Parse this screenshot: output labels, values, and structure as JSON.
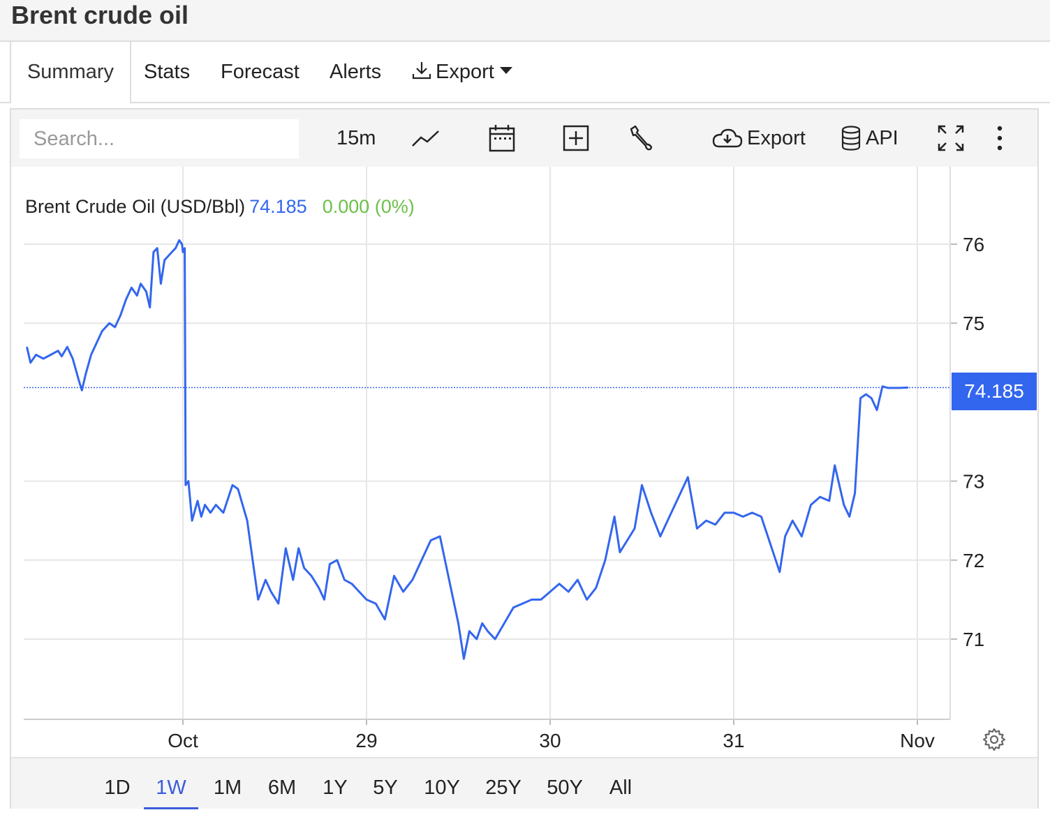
{
  "page": {
    "title": "Brent crude oil"
  },
  "tabs": [
    {
      "label": "Summary",
      "active": true
    },
    {
      "label": "Stats"
    },
    {
      "label": "Forecast"
    },
    {
      "label": "Alerts"
    },
    {
      "label": "Export"
    }
  ],
  "toolbar": {
    "search_placeholder": "Search...",
    "interval": "15m",
    "export_label": "Export",
    "api_label": "API",
    "icons": [
      "line-chart-icon",
      "calendar-icon",
      "add-indicator-icon",
      "wrench-icon",
      "cloud-download-icon",
      "database-icon",
      "fullscreen-icon",
      "more-vertical-icon"
    ]
  },
  "legend": {
    "name": "Brent Crude Oil (USD/Bbl)",
    "last": "74.185",
    "change": "0.000 (0%)"
  },
  "periods": [
    {
      "label": "1D"
    },
    {
      "label": "1W",
      "active": true
    },
    {
      "label": "1M"
    },
    {
      "label": "6M"
    },
    {
      "label": "1Y"
    },
    {
      "label": "5Y"
    },
    {
      "label": "10Y"
    },
    {
      "label": "25Y"
    },
    {
      "label": "50Y"
    },
    {
      "label": "All"
    }
  ],
  "colors": {
    "line": "#3366ee",
    "change_positive": "#6cc04a",
    "grid": "#e6e6e6"
  },
  "chart_data": {
    "type": "line",
    "title": "Brent Crude Oil (USD/Bbl)",
    "xlabel": "",
    "ylabel": "",
    "ylim": [
      70,
      76.9
    ],
    "yticks": [
      71,
      72,
      73,
      75,
      76
    ],
    "xlim": [
      -0.85,
      4.3
    ],
    "xticks": [
      {
        "label": "Oct",
        "x": 0
      },
      {
        "label": "29",
        "x": 1
      },
      {
        "label": "30",
        "x": 2
      },
      {
        "label": "31",
        "x": 3
      },
      {
        "label": "Nov",
        "x": 4
      }
    ],
    "last_value": "74.185",
    "grid": true,
    "series": [
      {
        "name": "Brent Crude Oil (USD/Bbl)",
        "points": [
          [
            -0.85,
            74.7
          ],
          [
            -0.83,
            74.5
          ],
          [
            -0.8,
            74.6
          ],
          [
            -0.76,
            74.55
          ],
          [
            -0.72,
            74.6
          ],
          [
            -0.68,
            74.65
          ],
          [
            -0.66,
            74.58
          ],
          [
            -0.63,
            74.7
          ],
          [
            -0.6,
            74.55
          ],
          [
            -0.57,
            74.3
          ],
          [
            -0.55,
            74.15
          ],
          [
            -0.53,
            74.35
          ],
          [
            -0.5,
            74.6
          ],
          [
            -0.47,
            74.75
          ],
          [
            -0.44,
            74.9
          ],
          [
            -0.4,
            75.0
          ],
          [
            -0.37,
            74.95
          ],
          [
            -0.34,
            75.1
          ],
          [
            -0.31,
            75.3
          ],
          [
            -0.28,
            75.45
          ],
          [
            -0.25,
            75.35
          ],
          [
            -0.23,
            75.5
          ],
          [
            -0.2,
            75.4
          ],
          [
            -0.18,
            75.2
          ],
          [
            -0.16,
            75.9
          ],
          [
            -0.14,
            75.95
          ],
          [
            -0.12,
            75.5
          ],
          [
            -0.1,
            75.8
          ],
          [
            -0.08,
            75.85
          ],
          [
            -0.06,
            75.9
          ],
          [
            -0.04,
            75.95
          ],
          [
            -0.02,
            76.05
          ],
          [
            -0.005,
            76.0
          ],
          [
            0.0,
            75.9
          ],
          [
            0.01,
            75.95
          ],
          [
            0.015,
            72.95
          ],
          [
            0.03,
            73.0
          ],
          [
            0.05,
            72.5
          ],
          [
            0.08,
            72.75
          ],
          [
            0.1,
            72.55
          ],
          [
            0.12,
            72.7
          ],
          [
            0.15,
            72.6
          ],
          [
            0.18,
            72.7
          ],
          [
            0.22,
            72.6
          ],
          [
            0.27,
            72.95
          ],
          [
            0.3,
            72.9
          ],
          [
            0.35,
            72.5
          ],
          [
            0.38,
            72.0
          ],
          [
            0.41,
            71.5
          ],
          [
            0.45,
            71.75
          ],
          [
            0.48,
            71.6
          ],
          [
            0.52,
            71.45
          ],
          [
            0.56,
            72.15
          ],
          [
            0.6,
            71.75
          ],
          [
            0.63,
            72.15
          ],
          [
            0.66,
            71.9
          ],
          [
            0.7,
            71.8
          ],
          [
            0.74,
            71.65
          ],
          [
            0.77,
            71.5
          ],
          [
            0.8,
            71.95
          ],
          [
            0.84,
            72.0
          ],
          [
            0.88,
            71.75
          ],
          [
            0.92,
            71.7
          ],
          [
            0.96,
            71.6
          ],
          [
            1.0,
            71.5
          ],
          [
            1.05,
            71.45
          ],
          [
            1.1,
            71.25
          ],
          [
            1.15,
            71.8
          ],
          [
            1.2,
            71.6
          ],
          [
            1.25,
            71.75
          ],
          [
            1.3,
            72.0
          ],
          [
            1.35,
            72.25
          ],
          [
            1.4,
            72.3
          ],
          [
            1.45,
            71.75
          ],
          [
            1.5,
            71.2
          ],
          [
            1.53,
            70.75
          ],
          [
            1.56,
            71.1
          ],
          [
            1.6,
            71.0
          ],
          [
            1.63,
            71.2
          ],
          [
            1.66,
            71.1
          ],
          [
            1.7,
            71.0
          ],
          [
            1.75,
            71.2
          ],
          [
            1.8,
            71.4
          ],
          [
            1.85,
            71.45
          ],
          [
            1.9,
            71.5
          ],
          [
            1.95,
            71.5
          ],
          [
            2.0,
            71.6
          ],
          [
            2.05,
            71.7
          ],
          [
            2.1,
            71.6
          ],
          [
            2.15,
            71.75
          ],
          [
            2.2,
            71.5
          ],
          [
            2.25,
            71.65
          ],
          [
            2.3,
            72.0
          ],
          [
            2.35,
            72.55
          ],
          [
            2.38,
            72.1
          ],
          [
            2.42,
            72.25
          ],
          [
            2.46,
            72.4
          ],
          [
            2.5,
            72.95
          ],
          [
            2.55,
            72.6
          ],
          [
            2.6,
            72.3
          ],
          [
            2.65,
            72.55
          ],
          [
            2.7,
            72.8
          ],
          [
            2.75,
            73.05
          ],
          [
            2.8,
            72.4
          ],
          [
            2.85,
            72.5
          ],
          [
            2.9,
            72.45
          ],
          [
            2.95,
            72.6
          ],
          [
            3.0,
            72.6
          ],
          [
            3.05,
            72.55
          ],
          [
            3.1,
            72.6
          ],
          [
            3.15,
            72.55
          ],
          [
            3.2,
            72.2
          ],
          [
            3.25,
            71.85
          ],
          [
            3.28,
            72.3
          ],
          [
            3.32,
            72.5
          ],
          [
            3.37,
            72.3
          ],
          [
            3.42,
            72.7
          ],
          [
            3.47,
            72.8
          ],
          [
            3.52,
            72.75
          ],
          [
            3.55,
            73.2
          ],
          [
            3.6,
            72.7
          ],
          [
            3.63,
            72.55
          ],
          [
            3.66,
            72.85
          ],
          [
            3.69,
            74.05
          ],
          [
            3.72,
            74.1
          ],
          [
            3.75,
            74.05
          ],
          [
            3.78,
            73.9
          ],
          [
            3.81,
            74.2
          ],
          [
            3.84,
            74.18
          ],
          [
            3.9,
            74.18
          ],
          [
            3.95,
            74.185
          ]
        ]
      }
    ]
  }
}
